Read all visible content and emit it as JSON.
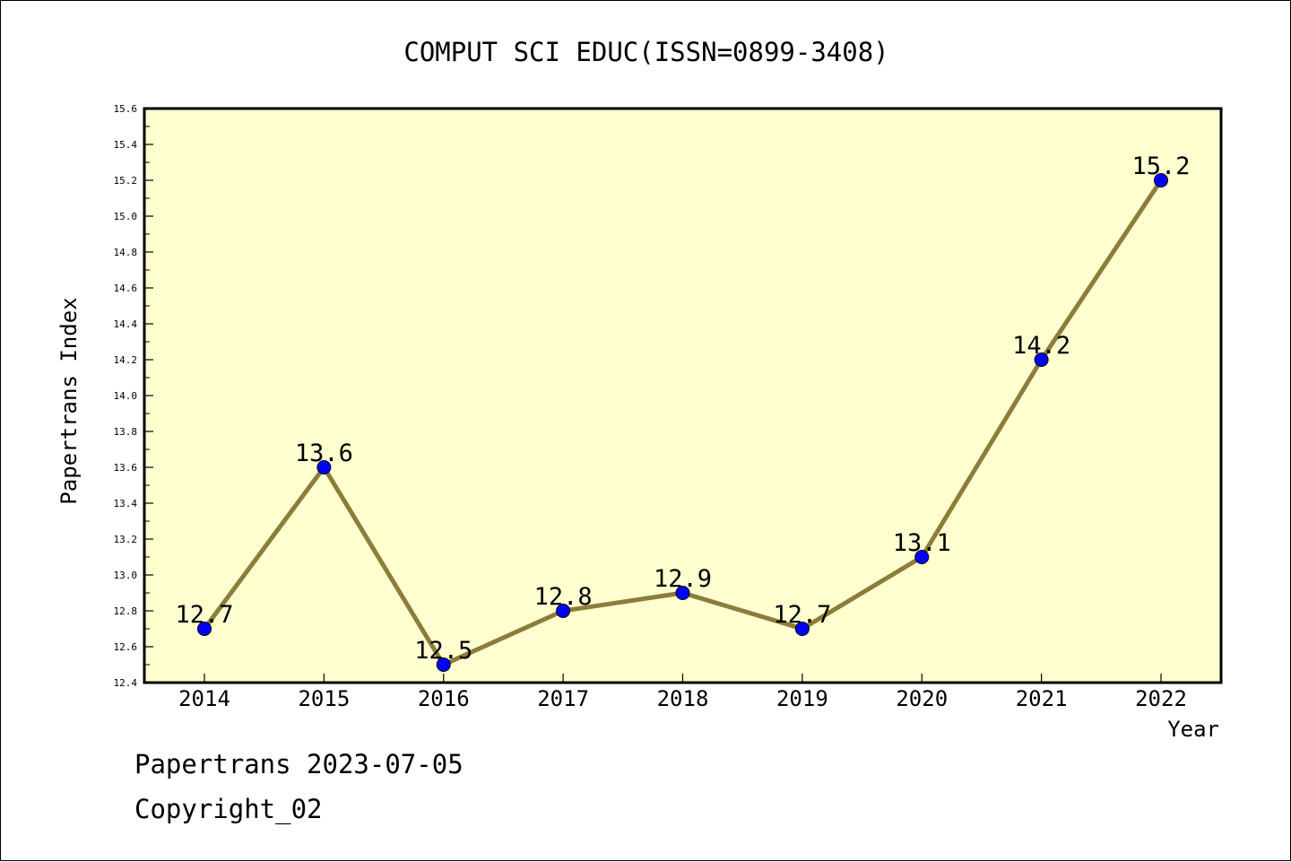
{
  "chart_data": {
    "type": "line",
    "title": "COMPUT SCI EDUC(ISSN=0899-3408)",
    "xlabel": "Year",
    "ylabel": "Papertrans Index",
    "categories": [
      "2014",
      "2015",
      "2016",
      "2017",
      "2018",
      "2019",
      "2020",
      "2021",
      "2022"
    ],
    "series": [
      {
        "values": [
          12.7,
          13.6,
          12.5,
          12.8,
          12.9,
          12.7,
          13.1,
          14.2,
          15.2
        ],
        "data_labels": [
          "12.7",
          "13.6",
          "12.5",
          "12.8",
          "12.9",
          "12.7",
          "13.1",
          "14.2",
          "15.2"
        ]
      }
    ],
    "ylim": [
      12.4,
      15.6
    ],
    "y_ticks": [
      "12.4",
      "12.6",
      "12.8",
      "13.0",
      "13.2",
      "13.4",
      "13.6",
      "13.8",
      "14.0",
      "14.2",
      "14.4",
      "14.6",
      "14.8",
      "15.0",
      "15.2",
      "15.4",
      "15.6"
    ],
    "grid": false,
    "legend": "none",
    "colors": {
      "plot_background": "#ffffd0",
      "line": "#8b7d3a",
      "marker": "#0000ff"
    }
  },
  "footer": {
    "date_text": "Papertrans 2023-07-05",
    "copyright_text": "Copyright_02"
  }
}
